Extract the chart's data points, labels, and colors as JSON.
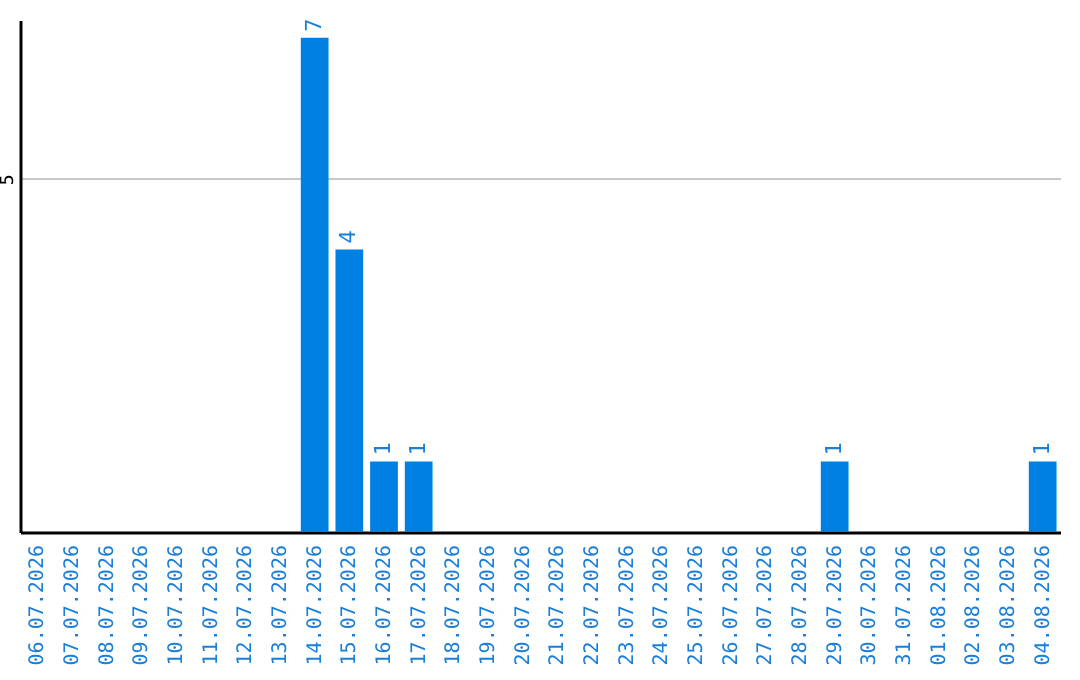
{
  "chart_data": {
    "type": "bar",
    "categories": [
      "06.07.2026",
      "07.07.2026",
      "08.07.2026",
      "09.07.2026",
      "10.07.2026",
      "11.07.2026",
      "12.07.2026",
      "13.07.2026",
      "14.07.2026",
      "15.07.2026",
      "16.07.2026",
      "17.07.2026",
      "18.07.2026",
      "19.07.2026",
      "20.07.2026",
      "21.07.2026",
      "22.07.2026",
      "23.07.2026",
      "24.07.2026",
      "25.07.2026",
      "26.07.2026",
      "27.07.2026",
      "28.07.2026",
      "29.07.2026",
      "30.07.2026",
      "31.07.2026",
      "01.08.2026",
      "02.08.2026",
      "03.08.2026",
      "04.08.2026"
    ],
    "values": [
      0,
      0,
      0,
      0,
      0,
      0,
      0,
      0,
      7,
      4,
      1,
      1,
      0,
      0,
      0,
      0,
      0,
      0,
      0,
      0,
      0,
      0,
      0,
      1,
      0,
      0,
      0,
      0,
      0,
      1
    ],
    "value_labels": [
      null,
      null,
      null,
      null,
      null,
      null,
      null,
      null,
      "7",
      "4",
      "1",
      "1",
      null,
      null,
      null,
      null,
      null,
      null,
      null,
      null,
      null,
      null,
      null,
      "1",
      null,
      null,
      null,
      null,
      null,
      "1"
    ],
    "color": "#0080e2",
    "ylim": [
      0,
      7.25
    ],
    "yticks": [
      5
    ],
    "grid": "y"
  }
}
